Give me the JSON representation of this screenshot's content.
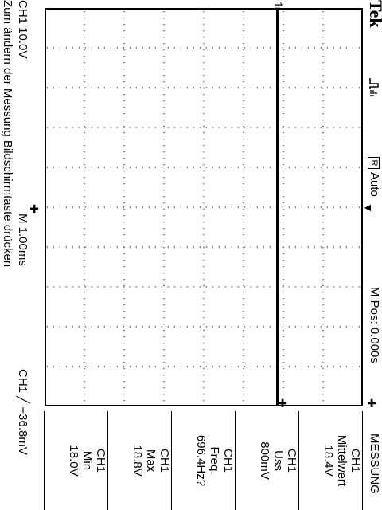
{
  "header": {
    "brand": "Tek",
    "trigger_icon": "⎓⨠",
    "acq_icon_glyph": "R",
    "acq_mode": "Auto",
    "m_pos": "M Pos: 0.000s",
    "menu_title": "MESSUNG"
  },
  "footer": {
    "ch1_scale": "CH1  10.0V",
    "timebase": "M 1.00ms",
    "trigger": "CH1  ╱  −36.8mV",
    "hint": "Zum ändern der Messung Bildschirmtaste drücken"
  },
  "markers": {
    "channel": "1▸",
    "trigger_pos": "▼"
  },
  "measurements": [
    {
      "source": "CH1",
      "type": "Mittelwert",
      "value": "18.4V"
    },
    {
      "source": "CH1",
      "type": "Uss",
      "value": "800mV"
    },
    {
      "source": "CH1",
      "type": "Freq.",
      "value": "696.4Hz?"
    },
    {
      "source": "CH1",
      "type": "Max",
      "value": "18.8V"
    },
    {
      "source": "CH1",
      "type": "Min",
      "value": "18.0V"
    }
  ]
}
